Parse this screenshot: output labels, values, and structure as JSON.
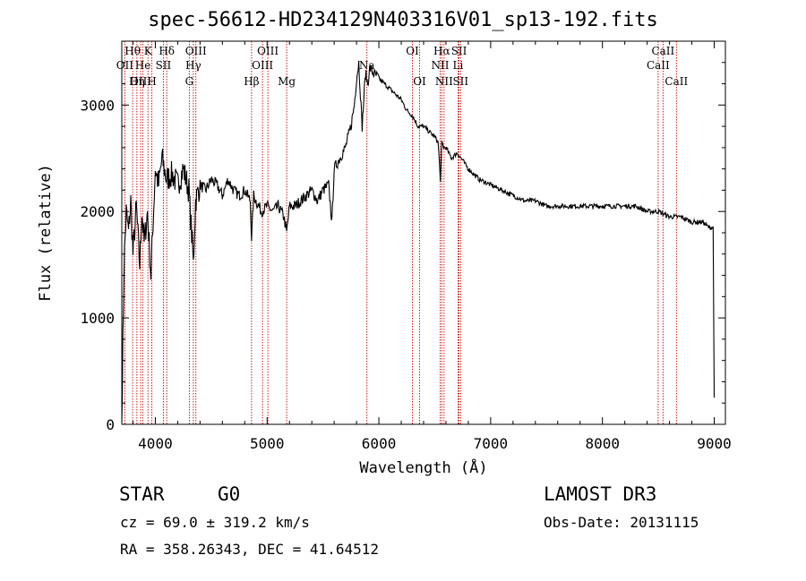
{
  "header": {
    "title": "spec-56612-HD234129N403316V01_sp13-192.fits"
  },
  "info": {
    "object_class": "STAR",
    "subclass": "G0",
    "survey": "LAMOST DR3",
    "redshift_text": "cz = 69.0 ± 319.2 km/s",
    "obs_date_text": "Obs-Date: 20131115",
    "coords_text": "RA = 358.26343, DEC =  41.64512"
  },
  "colors": {
    "spectrum": "#000000",
    "lines": "#cc0000",
    "background": "#ffffff"
  },
  "chart_data": {
    "type": "line",
    "title": "spec-56612-HD234129N403316V01_sp13-192.fits",
    "xlabel": "Wavelength (Å)",
    "ylabel": "Flux (relative)",
    "xlim": [
      3700,
      9100
    ],
    "ylim": [
      0,
      3600
    ],
    "xticks": [
      4000,
      5000,
      6000,
      7000,
      8000,
      9000
    ],
    "yticks": [
      0,
      1000,
      2000,
      3000
    ],
    "grid": false,
    "series": [
      {
        "x": [
          3700,
          3720,
          3740,
          3760,
          3780,
          3800,
          3830,
          3860,
          3880,
          3900,
          3930,
          3960,
          3980,
          4000,
          4030,
          4060,
          4100,
          4150,
          4200,
          4250,
          4300,
          4330,
          4340,
          4360,
          4400,
          4450,
          4500,
          4550,
          4600,
          4650,
          4700,
          4750,
          4800,
          4850,
          4861,
          4880,
          4900,
          4950,
          5000,
          5050,
          5100,
          5150,
          5175,
          5200,
          5250,
          5300,
          5350,
          5400,
          5450,
          5500,
          5550,
          5580,
          5600,
          5650,
          5700,
          5750,
          5780,
          5800,
          5820,
          5850,
          5880,
          5900,
          5920,
          5950,
          6000,
          6050,
          6100,
          6150,
          6200,
          6250,
          6300,
          6350,
          6400,
          6450,
          6500,
          6530,
          6550,
          6563,
          6580,
          6600,
          6650,
          6700,
          6750,
          6800,
          6900,
          7000,
          7100,
          7200,
          7300,
          7400,
          7500,
          7600,
          7700,
          7800,
          7900,
          8000,
          8100,
          8200,
          8300,
          8400,
          8500,
          8600,
          8700,
          8800,
          8850,
          8900,
          8950,
          8990,
          9000
        ],
        "y": [
          20,
          1500,
          2000,
          1800,
          2100,
          1600,
          2050,
          1500,
          2000,
          1700,
          2000,
          1400,
          1900,
          2400,
          2250,
          2500,
          2300,
          2350,
          2250,
          2400,
          2200,
          1700,
          1500,
          2100,
          2250,
          2200,
          2300,
          2250,
          2150,
          2300,
          2200,
          2150,
          2200,
          2100,
          1750,
          2150,
          2100,
          2000,
          2050,
          2000,
          2050,
          1950,
          1800,
          2050,
          2050,
          2100,
          2150,
          2200,
          2100,
          2200,
          2250,
          1900,
          2400,
          2500,
          2600,
          2800,
          3000,
          3250,
          3400,
          2800,
          3300,
          3200,
          3350,
          3300,
          3250,
          3200,
          3150,
          3100,
          3050,
          2950,
          2900,
          2800,
          2800,
          2750,
          2700,
          2650,
          2300,
          2650,
          2600,
          2600,
          2500,
          2550,
          2480,
          2400,
          2300,
          2250,
          2200,
          2150,
          2100,
          2100,
          2050,
          2050,
          2050,
          2050,
          2050,
          2050,
          2050,
          2050,
          2050,
          2000,
          2000,
          1950,
          1950,
          1900,
          1900,
          1900,
          1850,
          1850,
          250
        ]
      }
    ],
    "line_markers": [
      {
        "name": "Hθ",
        "wavelength": 3797,
        "row": 1
      },
      {
        "name": "OII",
        "wavelength": 3727,
        "row": 2
      },
      {
        "name": "OIII",
        "wavelength": 3869,
        "row": 3
      },
      {
        "name": "K",
        "wavelength": 3934,
        "row": 1
      },
      {
        "name": "He",
        "wavelength": 3889,
        "row": 2
      },
      {
        "name": "Hη",
        "wavelength": 3835,
        "row": 3
      },
      {
        "name": "SII",
        "wavelength": 4072,
        "row": 2
      },
      {
        "name": "H",
        "wavelength": 3969,
        "row": 3
      },
      {
        "name": "Hδ",
        "wavelength": 4102,
        "row": 1
      },
      {
        "name": "OIII",
        "wavelength": 4363,
        "row": 1
      },
      {
        "name": "Hγ",
        "wavelength": 4340,
        "row": 2
      },
      {
        "name": "G",
        "wavelength": 4304,
        "row": 3
      },
      {
        "name": "Hβ",
        "wavelength": 4861,
        "row": 3
      },
      {
        "name": "OIII",
        "wavelength": 5007,
        "row": 1
      },
      {
        "name": "OIII",
        "wavelength": 4959,
        "row": 2
      },
      {
        "name": "Mg",
        "wavelength": 5175,
        "row": 3
      },
      {
        "name": "Na",
        "wavelength": 5893,
        "row": 2
      },
      {
        "name": "OI",
        "wavelength": 6300,
        "row": 1
      },
      {
        "name": "OI",
        "wavelength": 6364,
        "row": 3
      },
      {
        "name": "Hα",
        "wavelength": 6563,
        "row": 1
      },
      {
        "name": "NII",
        "wavelength": 6548,
        "row": 2
      },
      {
        "name": "NII",
        "wavelength": 6583,
        "row": 3
      },
      {
        "name": "SII",
        "wavelength": 6717,
        "row": 1
      },
      {
        "name": "Li",
        "wavelength": 6708,
        "row": 2
      },
      {
        "name": "SII",
        "wavelength": 6731,
        "row": 3
      },
      {
        "name": "CaII",
        "wavelength": 8542,
        "row": 1
      },
      {
        "name": "CaII",
        "wavelength": 8498,
        "row": 2
      },
      {
        "name": "CaII",
        "wavelength": 8662,
        "row": 3
      }
    ]
  }
}
